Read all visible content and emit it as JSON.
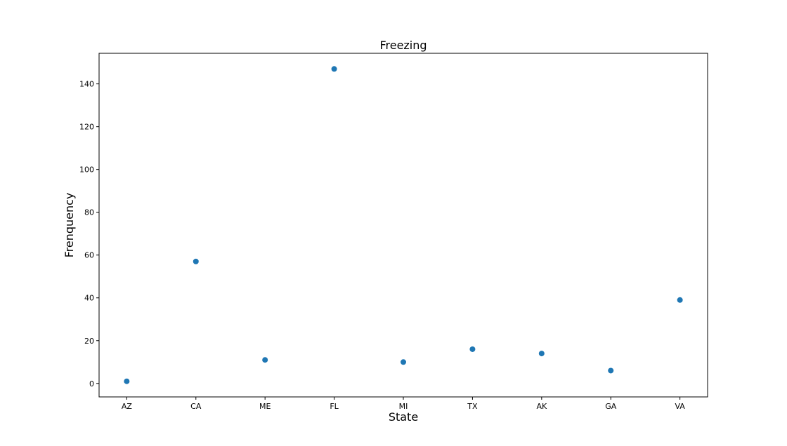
{
  "chart_data": {
    "type": "scatter",
    "title": "Freezing",
    "xlabel": "State",
    "ylabel": "Frenquency",
    "categories": [
      "AZ",
      "CA",
      "ME",
      "FL",
      "MI",
      "TX",
      "AK",
      "GA",
      "VA"
    ],
    "values": [
      1,
      57,
      11,
      147,
      10,
      16,
      14,
      6,
      39
    ],
    "ylim": [
      -6.3,
      154.3
    ],
    "yticks": [
      0,
      20,
      40,
      60,
      80,
      100,
      120,
      140
    ],
    "grid": false,
    "legend": "none",
    "point_color": "#1f77b4"
  }
}
